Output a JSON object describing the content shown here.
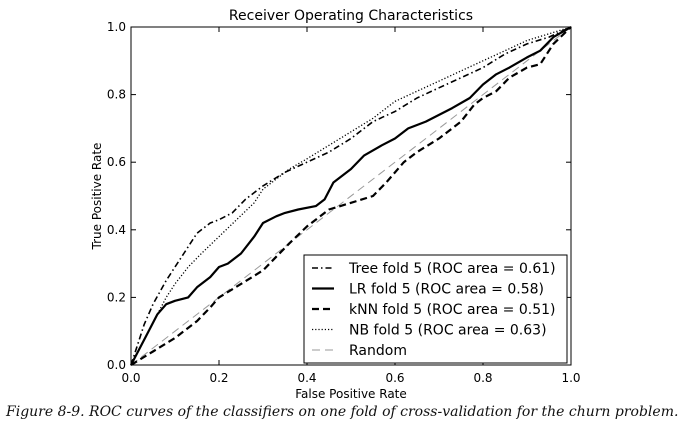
{
  "caption": "Figure 8-9. ROC curves of the classifiers on one fold of cross-validation for the churn problem.",
  "chart_data": {
    "type": "line",
    "title": "Receiver Operating Characteristics",
    "xlabel": "False Positive Rate",
    "ylabel": "True Positive Rate",
    "xlim": [
      0,
      1
    ],
    "ylim": [
      0,
      1
    ],
    "xticks": [
      "0.0",
      "0.2",
      "0.4",
      "0.6",
      "0.8",
      "1.0"
    ],
    "yticks": [
      "0.0",
      "0.2",
      "0.4",
      "0.6",
      "0.8",
      "1.0"
    ],
    "grid": false,
    "legend_position": "lower-right",
    "series": [
      {
        "name": "Tree fold 5 (ROC area = 0.61)",
        "style": "dash-dot",
        "x": [
          0,
          0.03,
          0.05,
          0.08,
          0.1,
          0.12,
          0.15,
          0.18,
          0.2,
          0.23,
          0.26,
          0.3,
          0.35,
          0.4,
          0.45,
          0.5,
          0.55,
          0.6,
          0.65,
          0.7,
          0.75,
          0.8,
          0.85,
          0.9,
          0.95,
          1.0
        ],
        "y": [
          0,
          0.12,
          0.18,
          0.25,
          0.29,
          0.33,
          0.39,
          0.42,
          0.43,
          0.45,
          0.49,
          0.53,
          0.57,
          0.6,
          0.63,
          0.67,
          0.72,
          0.75,
          0.79,
          0.82,
          0.85,
          0.88,
          0.92,
          0.95,
          0.97,
          1.0
        ]
      },
      {
        "name": "LR fold 5 (ROC area = 0.58)",
        "style": "solid",
        "x": [
          0,
          0.02,
          0.04,
          0.06,
          0.08,
          0.1,
          0.13,
          0.15,
          0.18,
          0.2,
          0.22,
          0.25,
          0.28,
          0.3,
          0.33,
          0.35,
          0.38,
          0.42,
          0.44,
          0.46,
          0.5,
          0.53,
          0.57,
          0.6,
          0.63,
          0.67,
          0.7,
          0.73,
          0.77,
          0.8,
          0.83,
          0.86,
          0.9,
          0.93,
          0.96,
          1.0
        ],
        "y": [
          0,
          0.05,
          0.1,
          0.15,
          0.18,
          0.19,
          0.2,
          0.23,
          0.26,
          0.29,
          0.3,
          0.33,
          0.38,
          0.42,
          0.44,
          0.45,
          0.46,
          0.47,
          0.49,
          0.54,
          0.58,
          0.62,
          0.65,
          0.67,
          0.7,
          0.72,
          0.74,
          0.76,
          0.79,
          0.83,
          0.86,
          0.88,
          0.91,
          0.93,
          0.97,
          1.0
        ]
      },
      {
        "name": "kNN fold 5 (ROC area = 0.51)",
        "style": "dashed",
        "x": [
          0,
          0.05,
          0.1,
          0.15,
          0.18,
          0.2,
          0.25,
          0.3,
          0.33,
          0.36,
          0.4,
          0.45,
          0.5,
          0.55,
          0.58,
          0.62,
          0.65,
          0.7,
          0.75,
          0.78,
          0.8,
          0.83,
          0.86,
          0.9,
          0.93,
          0.96,
          1.0
        ],
        "y": [
          0,
          0.04,
          0.08,
          0.13,
          0.17,
          0.2,
          0.24,
          0.28,
          0.32,
          0.36,
          0.41,
          0.46,
          0.48,
          0.5,
          0.54,
          0.6,
          0.63,
          0.67,
          0.72,
          0.77,
          0.79,
          0.81,
          0.85,
          0.88,
          0.89,
          0.95,
          1.0
        ]
      },
      {
        "name": "NB fold 5 (ROC area = 0.63)",
        "style": "dotted",
        "x": [
          0,
          0.02,
          0.04,
          0.06,
          0.08,
          0.1,
          0.13,
          0.16,
          0.2,
          0.24,
          0.28,
          0.3,
          0.33,
          0.36,
          0.4,
          0.45,
          0.5,
          0.55,
          0.6,
          0.65,
          0.7,
          0.75,
          0.8,
          0.85,
          0.9,
          0.95,
          1.0
        ],
        "y": [
          0,
          0.05,
          0.1,
          0.15,
          0.2,
          0.24,
          0.29,
          0.33,
          0.38,
          0.43,
          0.48,
          0.52,
          0.55,
          0.58,
          0.61,
          0.65,
          0.69,
          0.73,
          0.78,
          0.81,
          0.84,
          0.87,
          0.9,
          0.93,
          0.96,
          0.98,
          1.0
        ]
      },
      {
        "name": "Random",
        "style": "random",
        "x": [
          0,
          1
        ],
        "y": [
          0,
          1
        ]
      }
    ]
  }
}
